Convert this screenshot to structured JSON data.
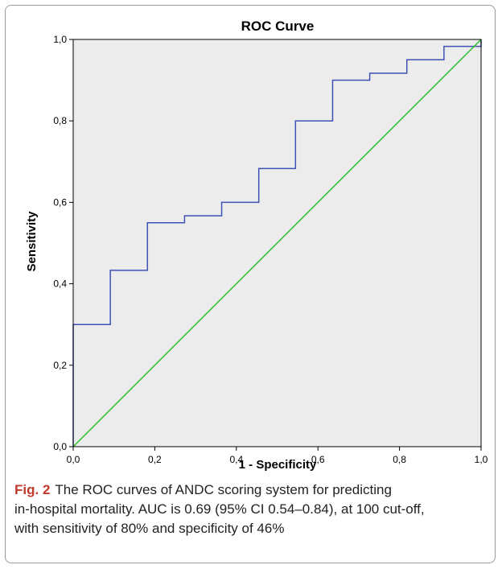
{
  "chart_data": {
    "type": "line",
    "title": "ROC Curve",
    "xlabel": "1 - Specificity",
    "ylabel": "Sensitivity",
    "xlim": [
      0,
      1
    ],
    "ylim": [
      0,
      1
    ],
    "x_ticks": [
      "0,0",
      "0,2",
      "0,4",
      "0,6",
      "0,8",
      "1,0"
    ],
    "y_ticks": [
      "0,0",
      "0,2",
      "0,4",
      "0,6",
      "0,8",
      "1,0"
    ],
    "grid": false,
    "plot_background": "#ececec",
    "series": [
      {
        "color": "#3f51b5",
        "step": true,
        "points": [
          [
            0.0,
            0.0
          ],
          [
            0.0,
            0.3
          ],
          [
            0.091,
            0.3
          ],
          [
            0.091,
            0.433
          ],
          [
            0.182,
            0.433
          ],
          [
            0.182,
            0.55
          ],
          [
            0.273,
            0.55
          ],
          [
            0.273,
            0.567
          ],
          [
            0.364,
            0.567
          ],
          [
            0.364,
            0.6
          ],
          [
            0.455,
            0.6
          ],
          [
            0.455,
            0.683
          ],
          [
            0.545,
            0.683
          ],
          [
            0.545,
            0.8
          ],
          [
            0.636,
            0.8
          ],
          [
            0.636,
            0.9
          ],
          [
            0.727,
            0.9
          ],
          [
            0.727,
            0.917
          ],
          [
            0.818,
            0.917
          ],
          [
            0.818,
            0.95
          ],
          [
            0.909,
            0.95
          ],
          [
            0.909,
            0.983
          ],
          [
            1.0,
            0.983
          ],
          [
            1.0,
            1.0
          ]
        ]
      },
      {
        "color": "#2ebd2e",
        "points": [
          [
            0,
            0
          ],
          [
            1,
            1
          ]
        ]
      }
    ]
  },
  "caption": {
    "label": "Fig. 2",
    "line1": "The ROC curves of ANDC scoring system for predicting",
    "line2": "in-hospital mortality. AUC is 0.69 (95% CI 0.54–0.84), at 100 cut-off,",
    "line3": "with sensitivity of 80% and specificity of 46%"
  }
}
